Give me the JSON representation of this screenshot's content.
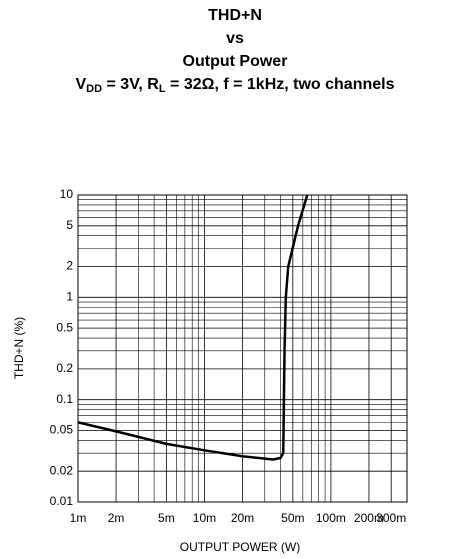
{
  "chart_data": {
    "type": "line",
    "title": [
      "THD+N",
      "vs",
      "Output Power"
    ],
    "subtitle": [
      "V",
      "DD",
      " = 3V, R",
      "L",
      " = 32Ω, f = 1kHz, two channels"
    ],
    "x_label": "OUTPUT POWER (W)",
    "y_label": "THD+N (%)",
    "x_log": true,
    "y_log": true,
    "grid": true,
    "xlim": [
      0.001,
      0.4
    ],
    "ylim": [
      0.01,
      10
    ],
    "xticks": [
      {
        "value": 0.001,
        "label": "1m"
      },
      {
        "value": 0.002,
        "label": "2m"
      },
      {
        "value": 0.005,
        "label": "5m"
      },
      {
        "value": 0.01,
        "label": "10m"
      },
      {
        "value": 0.02,
        "label": "20m"
      },
      {
        "value": 0.05,
        "label": "50m"
      },
      {
        "value": 0.1,
        "label": "100m"
      },
      {
        "value": 0.2,
        "label": "200m"
      },
      {
        "value": 0.3,
        "label": "300m"
      }
    ],
    "yticks": [
      0.01,
      0.02,
      0.05,
      0.1,
      0.2,
      0.5,
      1,
      2,
      5,
      10
    ],
    "xgrid": [
      0.003,
      0.004,
      0.006,
      0.007,
      0.008,
      0.009,
      0.03,
      0.04,
      0.06,
      0.07,
      0.08,
      0.09,
      0.4
    ],
    "ygrid": [
      0.03,
      0.04,
      0.06,
      0.07,
      0.08,
      0.09,
      0.3,
      0.4,
      0.6,
      0.7,
      0.8,
      0.9,
      3,
      4,
      6,
      7,
      8,
      9
    ],
    "series": [
      {
        "color": "#000000",
        "x": [
          0.001,
          0.002,
          0.005,
          0.01,
          0.02,
          0.035,
          0.04,
          0.042,
          0.043,
          0.044,
          0.046,
          0.055,
          0.065
        ],
        "values": [
          0.06,
          0.049,
          0.037,
          0.032,
          0.028,
          0.026,
          0.027,
          0.03,
          0.3,
          1,
          2,
          5,
          10
        ]
      }
    ]
  }
}
